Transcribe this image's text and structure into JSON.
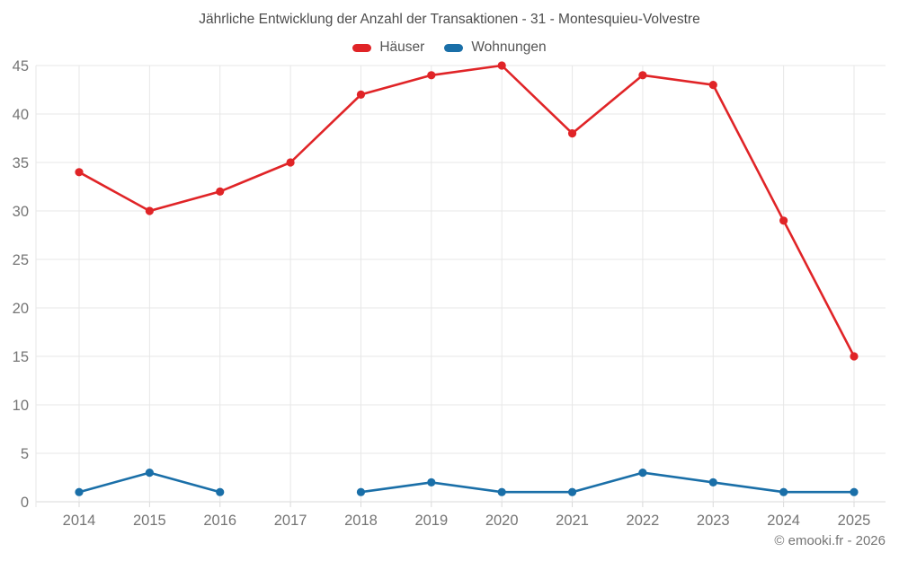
{
  "page": {
    "title": "Jährliche Entwicklung der Anzahl der Transaktionen - 31 - Montesquieu-Volvestre",
    "copyright": "© emooki.fr - 2026"
  },
  "colors": {
    "background": "#ffffff",
    "grid": "#e7e7e7",
    "axis_line": "#d9d9d9",
    "tick_label": "#757575",
    "title_text": "#4c4c4c",
    "legend_text": "#555555",
    "hauser_red": "#e02427",
    "wohnungen_blue": "#1a6fa8"
  },
  "chart_data": {
    "type": "line",
    "title": "Jährliche Entwicklung der Anzahl der Transaktionen - 31 - Montesquieu-Volvestre",
    "categories": [
      "2014",
      "2015",
      "2016",
      "2017",
      "2018",
      "2019",
      "2020",
      "2021",
      "2022",
      "2023",
      "2024",
      "2025"
    ],
    "series": [
      {
        "name": "Häuser",
        "color": "#e02427",
        "values": [
          34,
          30,
          32,
          35,
          42,
          44,
          45,
          38,
          44,
          43,
          29,
          15
        ]
      },
      {
        "name": "Wohnungen",
        "color": "#1a6fa8",
        "values": [
          1,
          3,
          1,
          null,
          1,
          2,
          1,
          1,
          3,
          2,
          1,
          1
        ]
      }
    ],
    "xlabel": "",
    "ylabel": "",
    "ylim": [
      0,
      45
    ],
    "y_tick_step": 5,
    "grid": true,
    "legend_position": "top"
  }
}
